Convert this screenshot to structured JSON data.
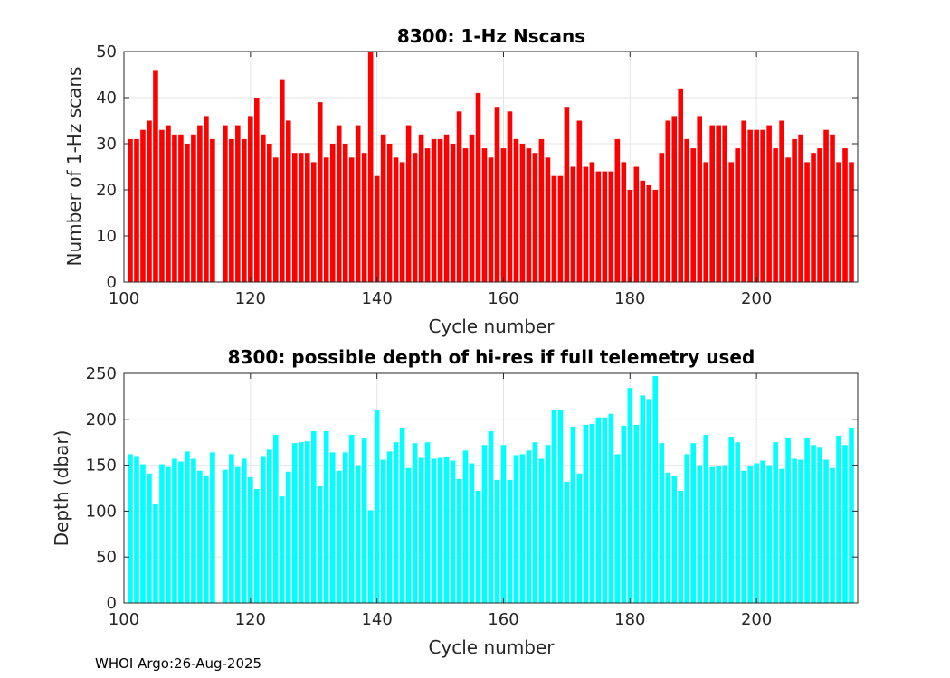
{
  "footer": {
    "text": "WHOI Argo:26-Aug-2025"
  },
  "chart_data": [
    {
      "type": "bar",
      "title": "8300: 1-Hz Nscans",
      "xlabel": "Cycle number",
      "ylabel": "Number of 1-Hz scans",
      "xlim": [
        100,
        216
      ],
      "ylim": [
        0,
        50
      ],
      "xticks": [
        100,
        120,
        140,
        160,
        180,
        200
      ],
      "yticks": [
        0,
        10,
        20,
        30,
        40,
        50
      ],
      "grid": true,
      "color": "#ff0000",
      "x": [
        101,
        102,
        103,
        104,
        105,
        106,
        107,
        108,
        109,
        110,
        111,
        112,
        113,
        114,
        115,
        116,
        117,
        118,
        119,
        120,
        121,
        122,
        123,
        124,
        125,
        126,
        127,
        128,
        129,
        130,
        131,
        132,
        133,
        134,
        135,
        136,
        137,
        138,
        139,
        140,
        141,
        142,
        143,
        144,
        145,
        146,
        147,
        148,
        149,
        150,
        151,
        152,
        153,
        154,
        155,
        156,
        157,
        158,
        159,
        160,
        161,
        162,
        163,
        164,
        165,
        166,
        167,
        168,
        169,
        170,
        171,
        172,
        173,
        174,
        175,
        176,
        177,
        178,
        179,
        180,
        181,
        182,
        183,
        184,
        185,
        186,
        187,
        188,
        189,
        190,
        191,
        192,
        193,
        194,
        195,
        196,
        197,
        198,
        199,
        200,
        201,
        202,
        203,
        204,
        205,
        206,
        207,
        208,
        209,
        210,
        211,
        212,
        213,
        214,
        215
      ],
      "values": [
        31,
        31,
        33,
        35,
        46,
        33,
        34,
        32,
        32,
        30,
        32,
        34,
        36,
        31,
        0,
        34,
        31,
        34,
        31,
        36,
        40,
        32,
        30,
        27,
        44,
        35,
        28,
        28,
        28,
        26,
        39,
        27,
        30,
        34,
        30,
        27,
        34,
        28,
        50,
        23,
        32,
        30,
        27,
        26,
        34,
        28,
        32,
        29,
        31,
        31,
        32,
        30,
        37,
        29,
        32,
        41,
        29,
        27,
        38,
        29,
        37,
        31,
        30,
        29,
        28,
        31,
        27,
        23,
        23,
        38,
        25,
        35,
        25,
        26,
        24,
        24,
        24,
        31,
        26,
        20,
        25,
        22,
        21,
        20,
        28,
        35,
        36,
        42,
        31,
        29,
        36,
        26,
        34,
        34,
        34,
        26,
        29,
        35,
        33,
        33,
        33,
        34,
        29,
        35,
        27,
        31,
        32,
        26,
        28,
        29,
        33,
        32,
        26,
        29,
        26
      ]
    },
    {
      "type": "bar",
      "title": "8300: possible depth of hi-res if full telemetry used",
      "xlabel": "Cycle number",
      "ylabel": "Depth (dbar)",
      "xlim": [
        100,
        216
      ],
      "ylim": [
        0,
        250
      ],
      "xticks": [
        100,
        120,
        140,
        160,
        180,
        200
      ],
      "yticks": [
        0,
        50,
        100,
        150,
        200,
        250
      ],
      "grid": true,
      "color": "#00ffff",
      "x": [
        101,
        102,
        103,
        104,
        105,
        106,
        107,
        108,
        109,
        110,
        111,
        112,
        113,
        114,
        115,
        116,
        117,
        118,
        119,
        120,
        121,
        122,
        123,
        124,
        125,
        126,
        127,
        128,
        129,
        130,
        131,
        132,
        133,
        134,
        135,
        136,
        137,
        138,
        139,
        140,
        141,
        142,
        143,
        144,
        145,
        146,
        147,
        148,
        149,
        150,
        151,
        152,
        153,
        154,
        155,
        156,
        157,
        158,
        159,
        160,
        161,
        162,
        163,
        164,
        165,
        166,
        167,
        168,
        169,
        170,
        171,
        172,
        173,
        174,
        175,
        176,
        177,
        178,
        179,
        180,
        181,
        182,
        183,
        184,
        185,
        186,
        187,
        188,
        189,
        190,
        191,
        192,
        193,
        194,
        195,
        196,
        197,
        198,
        199,
        200,
        201,
        202,
        203,
        204,
        205,
        206,
        207,
        208,
        209,
        210,
        211,
        212,
        213,
        214,
        215
      ],
      "values": [
        162,
        160,
        151,
        141,
        108,
        151,
        148,
        157,
        154,
        165,
        157,
        144,
        139,
        164,
        0,
        145,
        162,
        148,
        157,
        137,
        124,
        160,
        167,
        183,
        116,
        143,
        174,
        175,
        176,
        187,
        127,
        187,
        164,
        144,
        164,
        183,
        150,
        179,
        101,
        210,
        156,
        165,
        175,
        191,
        147,
        174,
        158,
        175,
        157,
        158,
        159,
        155,
        135,
        166,
        152,
        122,
        172,
        187,
        134,
        172,
        134,
        161,
        162,
        166,
        175,
        157,
        172,
        210,
        210,
        132,
        192,
        141,
        194,
        195,
        202,
        202,
        206,
        162,
        193,
        234,
        194,
        226,
        222,
        247,
        174,
        142,
        138,
        122,
        162,
        174,
        150,
        183,
        148,
        149,
        150,
        181,
        175,
        144,
        149,
        152,
        155,
        150,
        175,
        146,
        179,
        157,
        156,
        179,
        172,
        169,
        156,
        147,
        182,
        172,
        190
      ]
    }
  ]
}
